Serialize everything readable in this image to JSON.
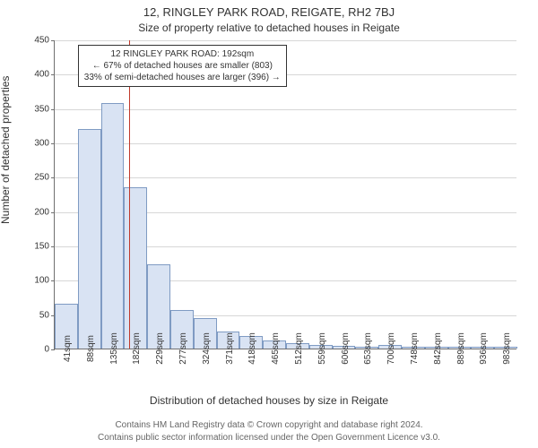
{
  "header": {
    "title": "12, RINGLEY PARK ROAD, REIGATE, RH2 7BJ",
    "subtitle": "Size of property relative to detached houses in Reigate"
  },
  "footer": {
    "line1": "Contains HM Land Registry data © Crown copyright and database right 2024.",
    "line2": "Contains public sector information licensed under the Open Government Licence v3.0."
  },
  "chart": {
    "type": "histogram",
    "ylabel": "Number of detached properties",
    "xlabel": "Distribution of detached houses by size in Reigate",
    "ylim": [
      0,
      450
    ],
    "ytick_step": 50,
    "grid_color": "#d7d7d7",
    "axis_color": "#707070",
    "background_color": "#ffffff",
    "bar_fill": "#d9e3f3",
    "bar_border": "#7f9bc3",
    "bar_width_ratio": 1.0,
    "tick_fontsize": 10,
    "label_fontsize": 12,
    "categories": [
      "41sqm",
      "88sqm",
      "135sqm",
      "182sqm",
      "229sqm",
      "277sqm",
      "324sqm",
      "371sqm",
      "418sqm",
      "465sqm",
      "512sqm",
      "559sqm",
      "606sqm",
      "653sqm",
      "700sqm",
      "748sqm",
      "842sqm",
      "889sqm",
      "936sqm",
      "983sqm"
    ],
    "values": [
      65,
      320,
      358,
      235,
      123,
      56,
      45,
      25,
      18,
      12,
      8,
      5,
      4,
      3,
      5,
      3,
      2,
      2,
      2,
      2
    ],
    "marker_line": {
      "position_value": 192,
      "x_range": [
        41,
        983
      ],
      "color": "#c0392b",
      "width": 1
    },
    "annotation": {
      "line1": "12 RINGLEY PARK ROAD: 192sqm",
      "line2": "← 67% of detached houses are smaller (803)",
      "line3": "33% of semi-detached houses are larger (396) →",
      "border_color": "#333333",
      "bg_color": "#ffffff",
      "fontsize": 10,
      "left_category_index": 1,
      "top_value": 443
    }
  }
}
